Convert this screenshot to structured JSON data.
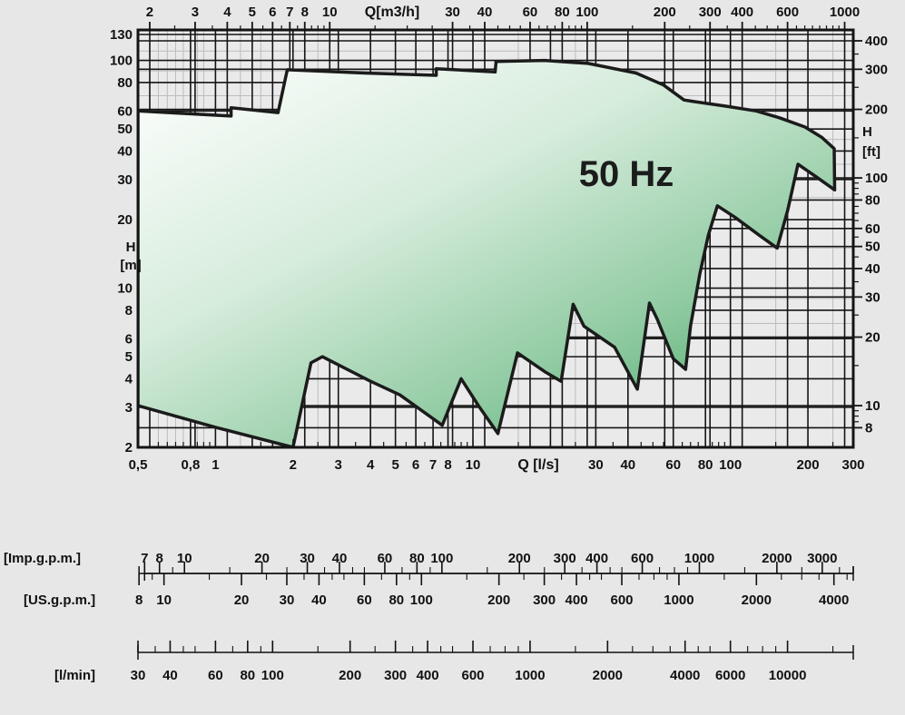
{
  "page": {
    "background": "#e7e7e7"
  },
  "chart_data": {
    "type": "area",
    "title": "50 Hz",
    "description": "Pump coverage envelope, flow Q vs head H on log-log scales",
    "axes": {
      "bottom": {
        "label": "Q [l/s]",
        "scale": "log",
        "range": [
          0.5,
          300
        ],
        "ticks": [
          {
            "v": 0.5,
            "t": "0,5"
          },
          {
            "v": 0.8,
            "t": "0,8"
          },
          {
            "v": 1,
            "t": "1"
          },
          {
            "v": 2,
            "t": "2"
          },
          {
            "v": 3,
            "t": "3"
          },
          {
            "v": 4,
            "t": "4"
          },
          {
            "v": 5,
            "t": "5"
          },
          {
            "v": 6,
            "t": "6"
          },
          {
            "v": 7,
            "t": "7"
          },
          {
            "v": 8,
            "t": "8"
          },
          {
            "v": 10,
            "t": "10"
          },
          {
            "v": 30,
            "t": "30"
          },
          {
            "v": 40,
            "t": "40"
          },
          {
            "v": 60,
            "t": "60"
          },
          {
            "v": 80,
            "t": "80"
          },
          {
            "v": 100,
            "t": "100"
          },
          {
            "v": 200,
            "t": "200"
          },
          {
            "v": 300,
            "t": "300"
          }
        ]
      },
      "top": {
        "label": "Q[m3/h]",
        "scale": "log",
        "ticks": [
          2,
          3,
          4,
          5,
          6,
          7,
          8,
          10,
          30,
          40,
          60,
          80,
          100,
          200,
          300,
          400,
          600,
          1000
        ]
      },
      "left": {
        "label_lines": [
          "H",
          "[m]"
        ],
        "scale": "log",
        "range": [
          2,
          130
        ],
        "ticks": [
          130,
          100,
          80,
          60,
          50,
          40,
          30,
          20,
          10,
          8,
          6,
          5,
          4,
          3,
          2
        ]
      },
      "right": {
        "label_lines": [
          "H",
          "[ft]"
        ],
        "scale": "log",
        "ticks": [
          400,
          300,
          200,
          100,
          80,
          60,
          50,
          40,
          30,
          20,
          10,
          8
        ]
      }
    },
    "envelope_q_h": [
      [
        0.5,
        60
      ],
      [
        1.15,
        57
      ],
      [
        1.15,
        62
      ],
      [
        1.75,
        59
      ],
      [
        1.9,
        91
      ],
      [
        3.8,
        88
      ],
      [
        7.2,
        86
      ],
      [
        7.2,
        92
      ],
      [
        12.2,
        89
      ],
      [
        12.3,
        99
      ],
      [
        19,
        100
      ],
      [
        28,
        97
      ],
      [
        43,
        88
      ],
      [
        55,
        78
      ],
      [
        66,
        67
      ],
      [
        72,
        66
      ],
      [
        96,
        63
      ],
      [
        126,
        60
      ],
      [
        155,
        56
      ],
      [
        195,
        51
      ],
      [
        226,
        46
      ],
      [
        253,
        41
      ],
      [
        254,
        27
      ],
      [
        214,
        31
      ],
      [
        183,
        35
      ],
      [
        167,
        22
      ],
      [
        152,
        15
      ],
      [
        130,
        17
      ],
      [
        104,
        20.5
      ],
      [
        89,
        23
      ],
      [
        82,
        17
      ],
      [
        76,
        11.5
      ],
      [
        70,
        6.8
      ],
      [
        67,
        4.4
      ],
      [
        60,
        4.9
      ],
      [
        52,
        7.3
      ],
      [
        48.5,
        8.6
      ],
      [
        43.5,
        3.6
      ],
      [
        35.5,
        5.5
      ],
      [
        27,
        6.8
      ],
      [
        24.5,
        8.5
      ],
      [
        22,
        3.9
      ],
      [
        19,
        4.3
      ],
      [
        14.9,
        5.2
      ],
      [
        12.5,
        2.3
      ],
      [
        10.5,
        3.05
      ],
      [
        9,
        4
      ],
      [
        7.6,
        2.5
      ],
      [
        5.2,
        3.4
      ],
      [
        4,
        3.9
      ],
      [
        2.6,
        5
      ],
      [
        2.35,
        4.7
      ],
      [
        2,
        2
      ],
      [
        1,
        2.45
      ],
      [
        0.5,
        3.05
      ]
    ],
    "colors": {
      "fill_start": "#ffffff",
      "fill_mid": "#9ed0ae",
      "fill_end": "#35a05b",
      "outline": "#1b1b1b",
      "grid_major": "#141414",
      "grid_minor": "#bcbcbc",
      "plot_bg": "#eaeaea",
      "text": "#111111"
    }
  },
  "rulers": {
    "imp_gpm": {
      "label": "[Imp.g.p.m.]",
      "units_per_l_per_s": 13.198,
      "ticks_labeled": [
        7,
        8,
        10,
        20,
        30,
        40,
        60,
        80,
        100,
        200,
        300,
        400,
        600,
        1000,
        2000,
        3000
      ]
    },
    "us_gpm": {
      "label": "[US.g.p.m.]",
      "units_per_l_per_s": 15.85,
      "ticks_labeled": [
        8,
        10,
        20,
        30,
        40,
        60,
        80,
        100,
        200,
        300,
        400,
        600,
        1000,
        2000,
        4000
      ]
    },
    "l_min": {
      "label": "[l/min]",
      "units_per_l_per_s": 60,
      "ticks_labeled": [
        30,
        40,
        60,
        80,
        100,
        200,
        300,
        400,
        600,
        1000,
        2000,
        4000,
        6000,
        10000
      ]
    }
  }
}
